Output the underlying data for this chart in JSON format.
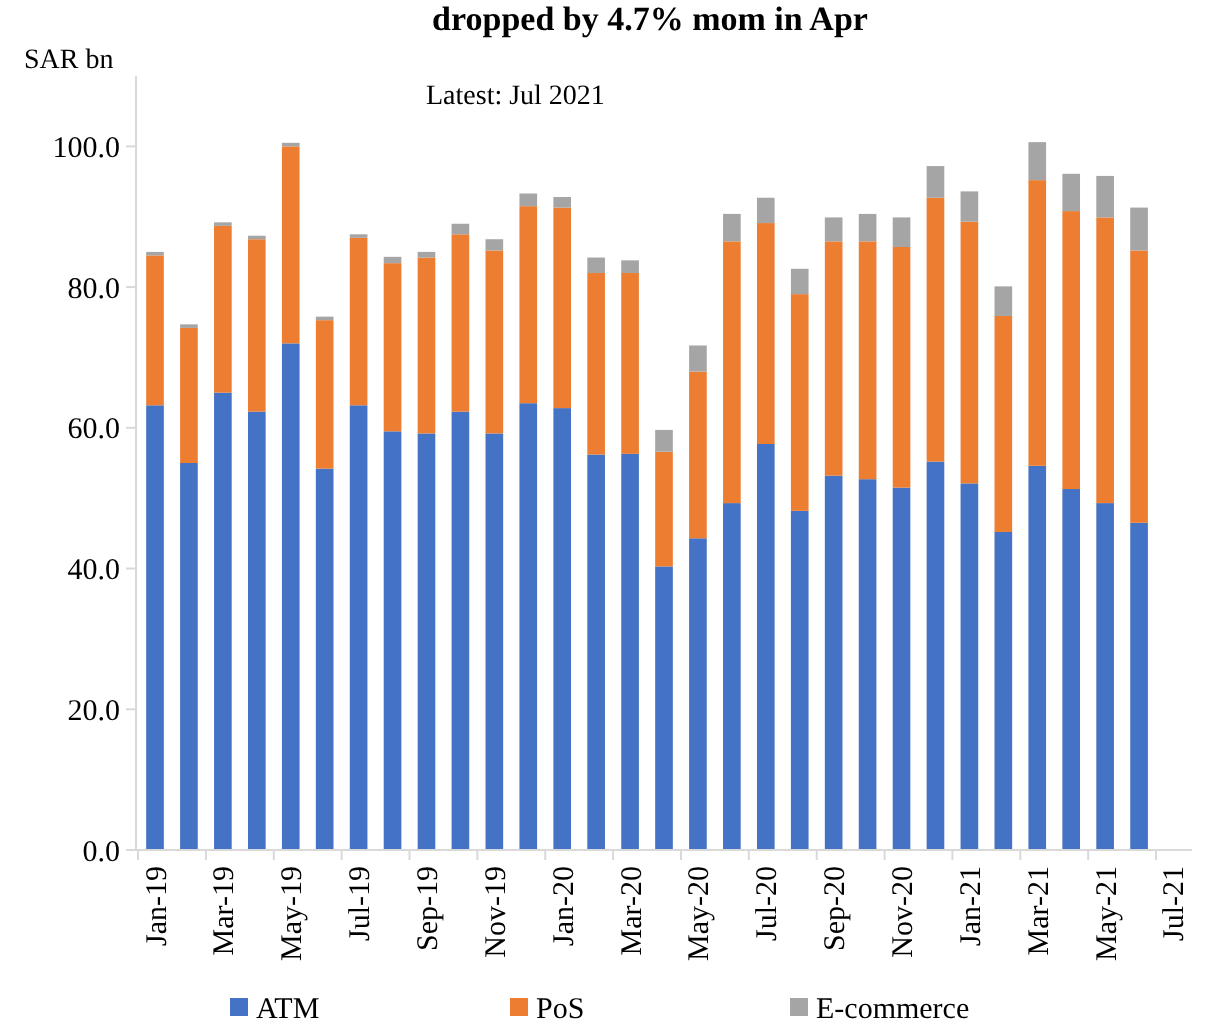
{
  "chart_data": {
    "type": "bar",
    "stacked": true,
    "title": "dropped by 4.7% mom in Apr",
    "ylabel": "SAR bn",
    "annotations": [
      "Latest: Jul 2021"
    ],
    "categories": [
      "Jan-19",
      null,
      "Mar-19",
      null,
      "May-19",
      null,
      "Jul-19",
      null,
      "Sep-19",
      null,
      "Nov-19",
      null,
      "Jan-20",
      null,
      "Mar-20",
      null,
      "May-20",
      null,
      "Jul-20",
      null,
      "Sep-20",
      null,
      "Nov-20",
      null,
      "Jan-21",
      null,
      "Mar-21",
      null,
      "May-21",
      null,
      "Jul-21"
    ],
    "series": [
      {
        "name": "ATM",
        "color": "#4472c4",
        "values": [
          63.2,
          55,
          65,
          62.3,
          72,
          54.2,
          63.2,
          59.5,
          59.2,
          62.3,
          59.2,
          63.5,
          62.8,
          56.2,
          56.3,
          40.3,
          44.3,
          49.3,
          57.7,
          48.2,
          53.2,
          52.7,
          51.5,
          55.2,
          52.1,
          45.2,
          54.6,
          51.3,
          49.3,
          46.5,
          null
        ]
      },
      {
        "name": "PoS",
        "color": "#ed7d31",
        "values": [
          21.3,
          19.2,
          23.7,
          24.5,
          28,
          21.1,
          23.8,
          23.9,
          25,
          25.2,
          26,
          28,
          28.5,
          25.8,
          25.7,
          16.3,
          23.7,
          37.2,
          31.4,
          30.8,
          33.3,
          33.8,
          34.2,
          37.5,
          37.2,
          30.7,
          40.6,
          39.5,
          40.6,
          38.7,
          null
        ]
      },
      {
        "name": "E-commerce",
        "color": "#a5a5a5",
        "values": [
          0.5,
          0.5,
          0.5,
          0.5,
          0.5,
          0.5,
          0.5,
          0.9,
          0.8,
          1.5,
          1.6,
          1.8,
          1.5,
          2.2,
          1.8,
          3.1,
          3.7,
          3.9,
          3.6,
          3.6,
          3.4,
          3.9,
          4.2,
          4.5,
          4.3,
          4.2,
          5.4,
          5.3,
          5.9,
          6.1,
          null
        ]
      }
    ],
    "ylim": [
      0,
      110
    ],
    "yticks": [
      {
        "value": 0,
        "label": "0.0"
      },
      {
        "value": 20,
        "label": "20.0"
      },
      {
        "value": 40,
        "label": "40.0"
      },
      {
        "value": 60,
        "label": "60.0"
      },
      {
        "value": 80,
        "label": "80.0"
      },
      {
        "value": 100,
        "label": "100.0"
      }
    ],
    "grid": false,
    "legend": "bottom"
  }
}
